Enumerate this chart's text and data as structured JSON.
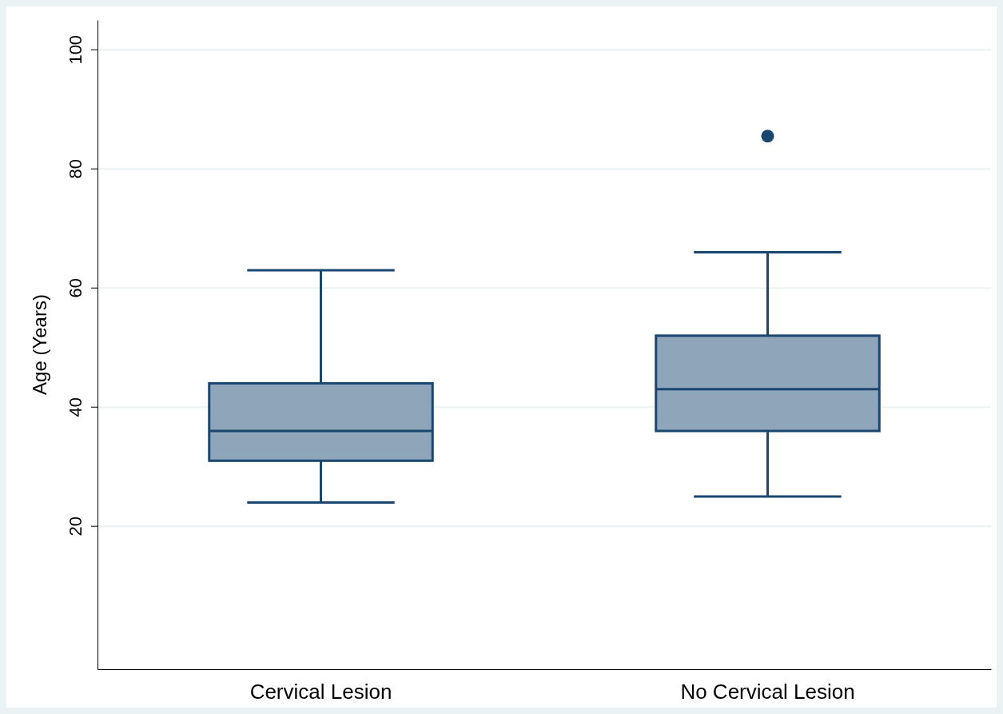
{
  "chart_data": {
    "type": "box",
    "ylabel": "Age (Years)",
    "categories": [
      "Cervical Lesion",
      "No Cervical Lesion"
    ],
    "boxes": [
      {
        "low": 24,
        "q1": 31,
        "median": 36,
        "q3": 44,
        "high": 63
      },
      {
        "low": 25,
        "q1": 36,
        "median": 43,
        "q3": 52,
        "high": 66,
        "outliers": [
          85.5
        ]
      }
    ],
    "color": "#8ea5ba",
    "ylim": [
      -4,
      105
    ],
    "yticks": [
      20,
      40,
      60,
      80,
      100
    ],
    "grid": "y"
  }
}
